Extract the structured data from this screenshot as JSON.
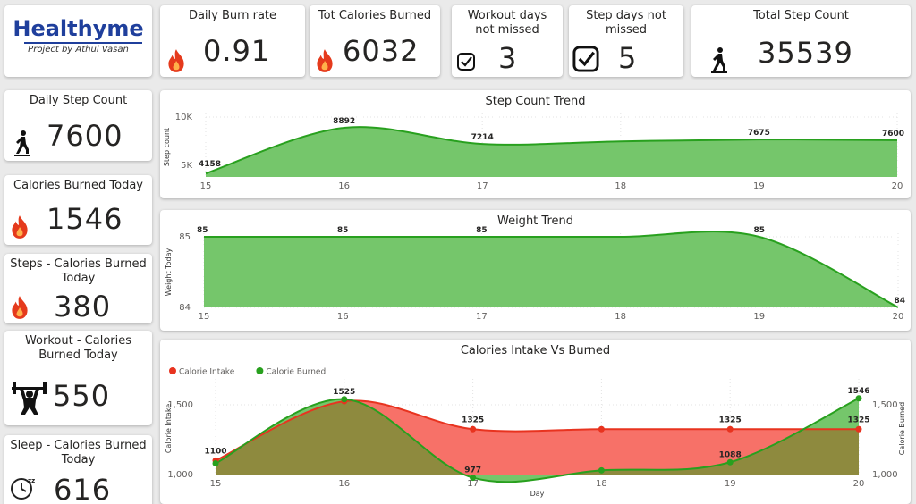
{
  "logo": {
    "title": "Healthyme",
    "subtitle": "Project by Athul Vasan"
  },
  "kpis": {
    "daily_burn_rate": {
      "title": "Daily Burn rate",
      "value": "0.91"
    },
    "tot_calories": {
      "title": "Tot Calories Burned",
      "value": "6032"
    },
    "workout_days": {
      "title": "Workout days not missed",
      "value": "3"
    },
    "step_days": {
      "title": "Step days not missed",
      "value": "5"
    },
    "total_steps": {
      "title": "Total Step Count",
      "value": "35539"
    },
    "daily_steps": {
      "title": "Daily Step Count",
      "value": "7600"
    },
    "calories_today": {
      "title": "Calories Burned Today",
      "value": "1546"
    },
    "steps_calories": {
      "title": "Steps - Calories Burned Today",
      "value": "380"
    },
    "workout_calories": {
      "title": "Workout - Calories Burned Today",
      "value": "550"
    },
    "sleep_calories": {
      "title": "Sleep - Calories Burned Today",
      "value": "616"
    }
  },
  "colors": {
    "green_fill": "#75c66b",
    "green_line": "#28a01e",
    "red_fill": "#f77168",
    "red_line": "#e8331f",
    "olive": "#8e8a3e",
    "flame": "#e53a1c",
    "logo": "#1f3f9c"
  },
  "icons": {
    "flame": "flame-icon",
    "check": "check-icon",
    "walk": "walking-person-icon",
    "weight": "weightlifting-icon",
    "sleep": "sleep-clock-icon"
  },
  "chart_data": [
    {
      "type": "area",
      "title": "Step Count Trend",
      "xlabel": "",
      "ylabel": "Step count",
      "x": [
        15,
        16,
        17,
        18,
        19,
        20
      ],
      "ylim": [
        3800,
        10000
      ],
      "y_ticks": [
        "5K",
        "10K"
      ],
      "y_tick_values": [
        5000,
        10000
      ],
      "series": [
        {
          "values": [
            4158,
            8892,
            7214,
            7480,
            7675,
            7600
          ]
        }
      ],
      "data_labels": [
        {
          "x": 15,
          "v": 4158
        },
        {
          "x": 16,
          "v": 8892
        },
        {
          "x": 17,
          "v": 7214
        },
        {
          "x": 19,
          "v": 7675
        },
        {
          "x": 20,
          "v": 7600
        }
      ]
    },
    {
      "type": "area",
      "title": "Weight Trend",
      "xlabel": "",
      "ylabel": "Weight Today",
      "x": [
        15,
        16,
        17,
        18,
        19,
        20
      ],
      "ylim": [
        84,
        85
      ],
      "y_ticks": [
        "84",
        "85"
      ],
      "y_tick_values": [
        84,
        85
      ],
      "series": [
        {
          "values": [
            85,
            85,
            85,
            85,
            85,
            84
          ]
        }
      ],
      "data_labels": [
        {
          "x": 15,
          "v": 85
        },
        {
          "x": 16,
          "v": 85
        },
        {
          "x": 17,
          "v": 85
        },
        {
          "x": 19,
          "v": 85
        },
        {
          "x": 20,
          "v": 84
        }
      ]
    },
    {
      "type": "area",
      "title": "Calories Intake Vs Burned",
      "xlabel": "Day",
      "ylabel": "Calorie Intake",
      "ylabel_right": "Calorie Burned",
      "x": [
        15,
        16,
        17,
        18,
        19,
        20
      ],
      "ylim": [
        1000,
        1660
      ],
      "y_ticks": [
        "1,000",
        "1,500"
      ],
      "y_tick_values": [
        1000,
        1500
      ],
      "legend": "top-left",
      "series": [
        {
          "name": "Calorie Intake",
          "values": [
            1100,
            1525,
            1325,
            1325,
            1325,
            1325
          ],
          "labels": [
            1100,
            1525,
            1325,
            null,
            1325,
            1325
          ]
        },
        {
          "name": "Calorie Burned",
          "values": [
            1080,
            1540,
            977,
            1030,
            1088,
            1546
          ],
          "labels": [
            null,
            null,
            977,
            null,
            1088,
            1546
          ]
        }
      ]
    }
  ]
}
